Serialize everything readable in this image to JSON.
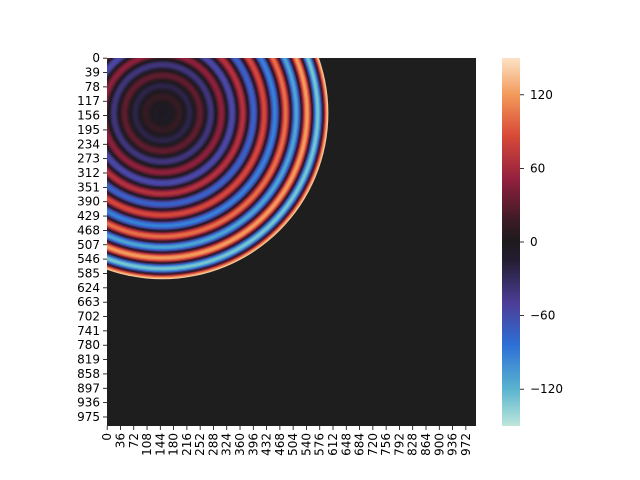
{
  "chart_data": {
    "type": "heatmap",
    "title": "",
    "xlabel": "",
    "ylabel": "",
    "colormap": "icefire",
    "x_tick_labels": [
      "0",
      "36",
      "72",
      "108",
      "144",
      "180",
      "216",
      "252",
      "288",
      "324",
      "360",
      "396",
      "432",
      "468",
      "504",
      "540",
      "576",
      "612",
      "648",
      "684",
      "720",
      "756",
      "792",
      "828",
      "864",
      "900",
      "936",
      "972"
    ],
    "y_tick_labels": [
      "0",
      "39",
      "78",
      "117",
      "156",
      "195",
      "234",
      "273",
      "312",
      "351",
      "390",
      "429",
      "468",
      "507",
      "546",
      "585",
      "624",
      "663",
      "702",
      "741",
      "780",
      "819",
      "858",
      "897",
      "936",
      "975"
    ],
    "x_range": [
      0,
      1000
    ],
    "y_range": [
      0,
      1000
    ],
    "wave": {
      "center_x": 150,
      "center_y": 150,
      "outer_radius": 450,
      "ring_wavelength": 58,
      "amplitude_max": 140,
      "background_value": 0
    },
    "colorbar": {
      "min": -150,
      "max": 150,
      "ticks": [
        -120,
        -60,
        0,
        60,
        120
      ],
      "tick_labels": [
        "−120",
        "−60",
        "0",
        "60",
        "120"
      ]
    }
  }
}
